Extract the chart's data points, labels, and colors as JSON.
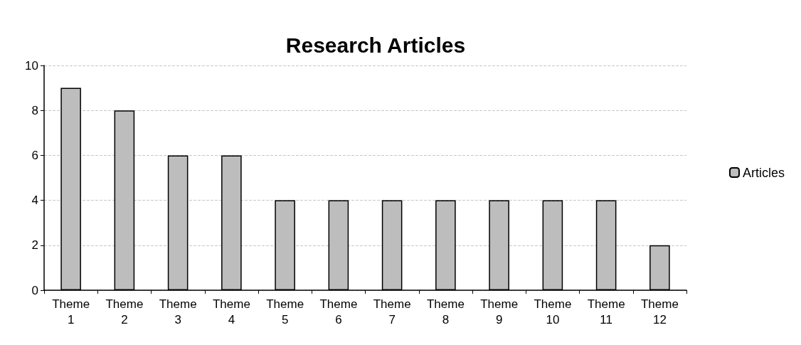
{
  "chart_data": {
    "type": "bar",
    "title": "Research Articles",
    "categories": [
      "Theme 1",
      "Theme 2",
      "Theme 3",
      "Theme 4",
      "Theme 5",
      "Theme 6",
      "Theme 7",
      "Theme 8",
      "Theme 9",
      "Theme 10",
      "Theme 11",
      "Theme 12"
    ],
    "series": [
      {
        "name": "Articles",
        "color": "#bdbdbd",
        "values": [
          9,
          8,
          6,
          6,
          4,
          4,
          4,
          4,
          4,
          4,
          4,
          2
        ]
      }
    ],
    "ylim": [
      0,
      10
    ],
    "yticks": [
      0,
      2,
      4,
      6,
      8,
      10
    ],
    "grid": "y",
    "legend": "right"
  }
}
